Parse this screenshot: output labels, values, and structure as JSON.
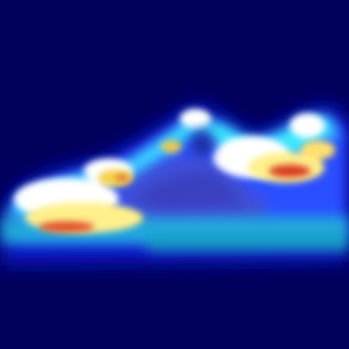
{
  "image": {
    "subject": "sneaker",
    "style": "heatmap overlay",
    "colormap": "jet",
    "colors": {
      "background": "#00005a",
      "cold": "#0000b4",
      "cool": "#1e3cff",
      "cyan": "#28dcff",
      "white_hot": "#ffffff",
      "yellow": "#fff08c",
      "orange": "#ff9a3c",
      "red": "#d21e1e"
    }
  }
}
